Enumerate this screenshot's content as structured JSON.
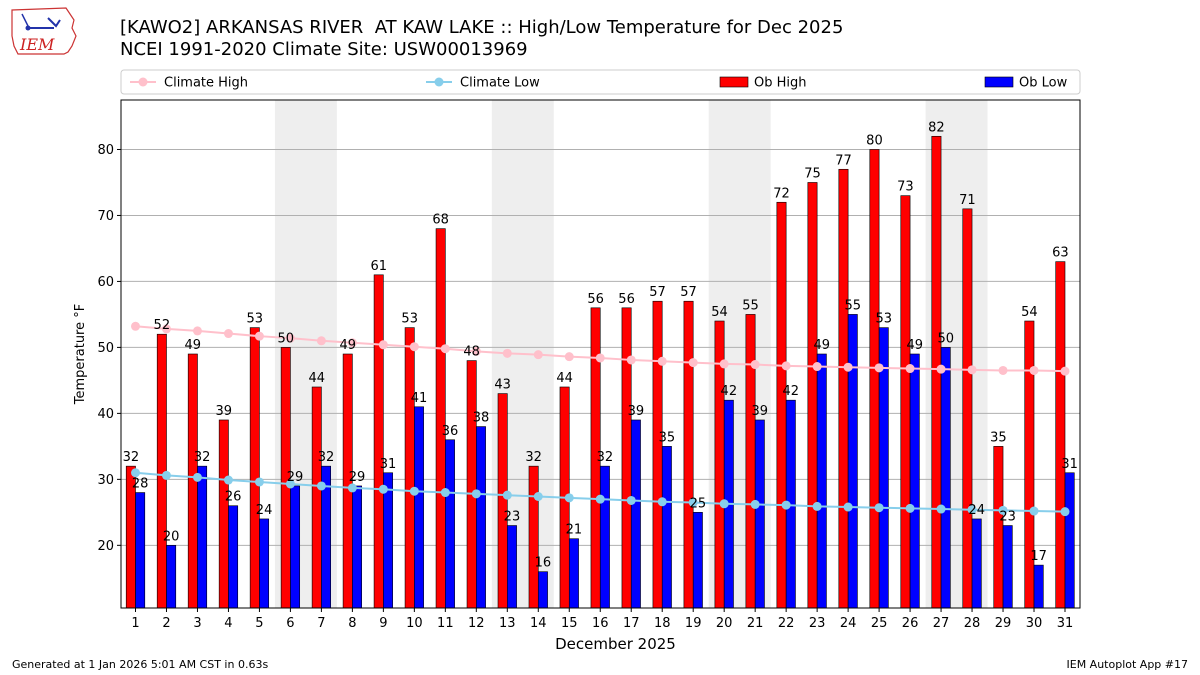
{
  "header": {
    "title_line1": "[KAWO2] ARKANSAS RIVER  AT KAW LAKE :: High/Low Temperature for Dec 2025",
    "title_line2": "NCEI 1991-2020 Climate Site: USW00013969",
    "logo_text": "IEM"
  },
  "footer": {
    "generated": "Generated at 1 Jan 2026 5:01 AM CST in 0.63s",
    "app": "IEM Autoplot App #17"
  },
  "chart_data": {
    "type": "bar",
    "xlabel": "December 2025",
    "ylabel": "Temperature °F",
    "ylim": [
      10.5,
      87.5
    ],
    "yticks": [
      20,
      30,
      40,
      50,
      60,
      70,
      80
    ],
    "grid": true,
    "legend_placement": "top",
    "weekend_shading_days": [
      6,
      7,
      13,
      14,
      20,
      21,
      27,
      28
    ],
    "categories": [
      1,
      2,
      3,
      4,
      5,
      6,
      7,
      8,
      9,
      10,
      11,
      12,
      13,
      14,
      15,
      16,
      17,
      18,
      19,
      20,
      21,
      22,
      23,
      24,
      25,
      26,
      27,
      28,
      29,
      30,
      31
    ],
    "series": [
      {
        "name": "Ob High",
        "kind": "bar",
        "color": "#ff0000",
        "values": [
          32,
          52,
          49,
          39,
          53,
          50,
          44,
          49,
          61,
          53,
          68,
          48,
          43,
          32,
          44,
          56,
          56,
          57,
          57,
          54,
          55,
          72,
          75,
          77,
          80,
          73,
          82,
          71,
          35,
          54,
          63
        ]
      },
      {
        "name": "Ob Low",
        "kind": "bar",
        "color": "#0000ff",
        "values": [
          28,
          20,
          32,
          26,
          24,
          29,
          32,
          29,
          31,
          41,
          36,
          38,
          23,
          16,
          21,
          32,
          39,
          35,
          25,
          42,
          39,
          42,
          49,
          55,
          53,
          49,
          50,
          24,
          23,
          17,
          31
        ]
      },
      {
        "name": "Climate High",
        "kind": "line",
        "color": "#ffc0cb",
        "values": [
          53.2,
          52.8,
          52.5,
          52.1,
          51.7,
          51.4,
          51.0,
          50.7,
          50.4,
          50.1,
          49.8,
          49.4,
          49.1,
          48.9,
          48.6,
          48.4,
          48.1,
          47.9,
          47.7,
          47.5,
          47.4,
          47.2,
          47.1,
          47.0,
          46.9,
          46.8,
          46.7,
          46.6,
          46.5,
          46.5,
          46.4
        ]
      },
      {
        "name": "Climate Low",
        "kind": "line",
        "color": "#87ceeb",
        "values": [
          31.0,
          30.6,
          30.3,
          29.9,
          29.6,
          29.3,
          29.0,
          28.7,
          28.5,
          28.2,
          28.0,
          27.8,
          27.6,
          27.4,
          27.2,
          27.0,
          26.8,
          26.6,
          26.5,
          26.3,
          26.2,
          26.1,
          25.9,
          25.8,
          25.7,
          25.6,
          25.5,
          25.4,
          25.3,
          25.2,
          25.1
        ]
      }
    ]
  }
}
